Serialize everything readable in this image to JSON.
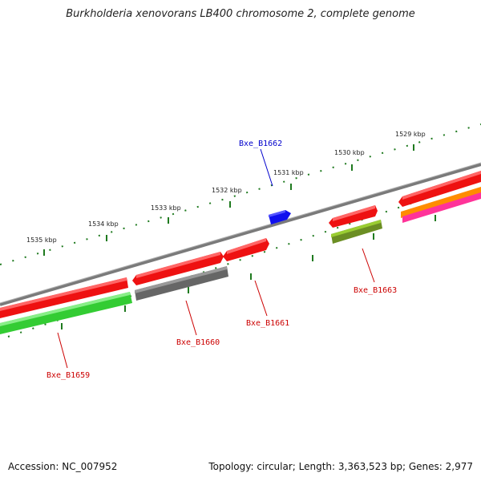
{
  "title": "Burkholderia xenovorans LB400 chromosome 2, complete genome",
  "footer": {
    "accession": "Accession: NC_007952",
    "summary": "Topology: circular; Length: 3,363,523 bp; Genes: 2,977"
  },
  "ruler": {
    "labels": [
      "1535 kbp",
      "1534 kbp",
      "1533 kbp",
      "1532 kbp",
      "1531 kbp",
      "1530 kbp",
      "1529 kbp"
    ]
  },
  "genes": [
    {
      "label": "Bxe_B1662",
      "label_color": "#0000cc",
      "color": "#1010ee"
    },
    {
      "label": "Bxe_B1663",
      "label_color": "#cc0000",
      "color": "#6b8e23"
    },
    {
      "label": "Bxe_B1661",
      "label_color": "#cc0000",
      "color": "#ee1111"
    },
    {
      "label": "Bxe_B1660",
      "label_color": "#cc0000",
      "color": "#666666"
    },
    {
      "label": "Bxe_B1659",
      "label_color": "#cc0000",
      "color": "#33cc33"
    }
  ],
  "colors": {
    "backbone": "#7a7a7a",
    "tick": "#1f7a1f",
    "cds_red": "#ee1111",
    "orange": "#ff8c00",
    "pink": "#ff3399"
  }
}
